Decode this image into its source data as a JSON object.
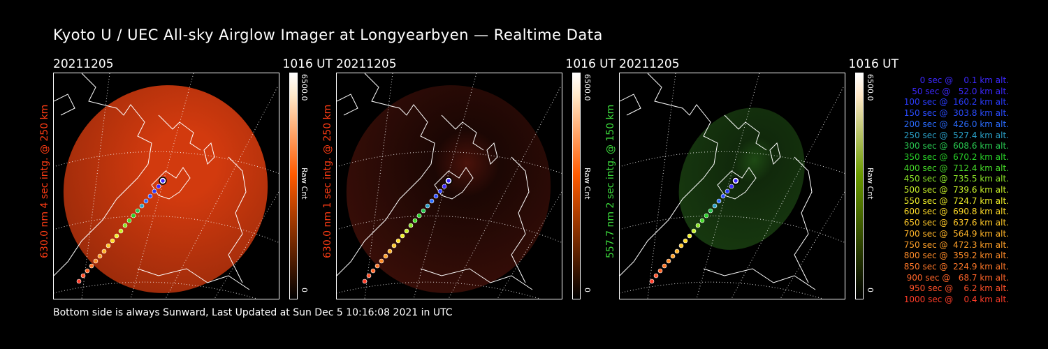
{
  "title": "Kyoto U / UEC All-sky Airglow Imager at Longyearbyen — Realtime Data",
  "footer": "Bottom side is always Sunward, Last Updated at Sun Dec  5 10:16:08 2021 in UTC",
  "panels": [
    {
      "date": "20211205",
      "time": "1016 UT",
      "label": "630.0 nm 4 sec intg. @ 250 km",
      "label_color": "#ff3c14",
      "cb_max": "6500.0",
      "cb_min": "0",
      "cb_label": "Raw Cnt",
      "cb_color": "#ff5a00",
      "glow_color": "#d23a0e",
      "brightness": 1.0
    },
    {
      "date": "20211205",
      "time": "1016 UT",
      "label": "630.0 nm 1 sec intg. @ 250 km",
      "label_color": "#ff3c14",
      "cb_max": "6500.0",
      "cb_min": "0",
      "cb_label": "Raw Cnt",
      "cb_color": "#ff5a00",
      "glow_color": "#4a120a",
      "brightness": 0.3
    },
    {
      "date": "20211205",
      "time": "1016 UT",
      "label": "557.7 nm 2 sec intg. @ 150 km",
      "label_color": "#3cdc3c",
      "cb_max": "6500.0",
      "cb_min": "0",
      "cb_label": "Raw Cnt",
      "cb_color": "#6a9a00",
      "glow_color": "#1e4a14",
      "brightness": 0.5
    }
  ],
  "legend": [
    {
      "text": "   0 sec @    0.1 km alt.",
      "color": "#3c28ff"
    },
    {
      "text": "  50 sec @   52.0 km alt.",
      "color": "#3c28ff"
    },
    {
      "text": " 100 sec @  160.2 km alt.",
      "color": "#2a3cff"
    },
    {
      "text": " 150 sec @  303.8 km alt.",
      "color": "#2a4cff"
    },
    {
      "text": " 200 sec @  426.0 km alt.",
      "color": "#2a6cff"
    },
    {
      "text": " 250 sec @  527.4 km alt.",
      "color": "#2aa0c8"
    },
    {
      "text": " 300 sec @  608.6 km alt.",
      "color": "#28c850"
    },
    {
      "text": " 350 sec @  670.2 km alt.",
      "color": "#28d228"
    },
    {
      "text": " 400 sec @  712.4 km alt.",
      "color": "#46dc28"
    },
    {
      "text": " 450 sec @  735.5 km alt.",
      "color": "#8ce628"
    },
    {
      "text": " 500 sec @  739.6 km alt.",
      "color": "#c8f028"
    },
    {
      "text": " 550 sec @  724.7 km alt.",
      "color": "#f0f028"
    },
    {
      "text": " 600 sec @  690.8 km alt.",
      "color": "#ffdc28"
    },
    {
      "text": " 650 sec @  637.6 km alt.",
      "color": "#ffc828"
    },
    {
      "text": " 700 sec @  564.9 km alt.",
      "color": "#ffb428"
    },
    {
      "text": " 750 sec @  472.3 km alt.",
      "color": "#ffa028"
    },
    {
      "text": " 800 sec @  359.2 km alt.",
      "color": "#ff8c28"
    },
    {
      "text": " 850 sec @  224.9 km alt.",
      "color": "#ff7828"
    },
    {
      "text": " 900 sec @   68.7 km alt.",
      "color": "#ff6428"
    },
    {
      "text": " 950 sec @    6.2 km alt.",
      "color": "#ff5028"
    },
    {
      "text": "1000 sec @    0.4 km alt.",
      "color": "#ff3c28"
    }
  ]
}
